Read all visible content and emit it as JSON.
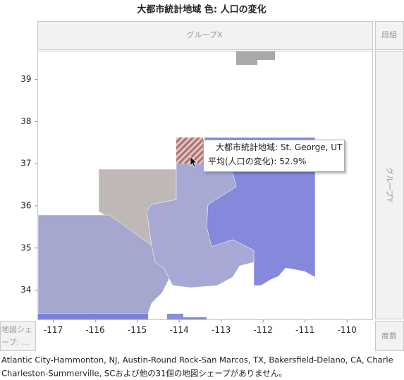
{
  "chart_data": {
    "type": "map",
    "title": "大都市統計地域 色: 人口の変化",
    "group_x_label": "グループX",
    "wrap_label": "段組",
    "group_y_label": "グループY",
    "freq_label": "度数",
    "map_shape_label": [
      "地図シェ",
      "ープ: …"
    ],
    "xlim": [
      -117.37,
      -109.39
    ],
    "xticks": [
      -117,
      -116,
      -115,
      -114,
      -113,
      -112,
      -111,
      -110
    ],
    "ylim": [
      33.3,
      39.67
    ],
    "yticks": [
      34,
      35,
      36,
      37,
      38,
      39
    ],
    "tooltip": {
      "region_label": "大都市統計地域:",
      "region": "St. George, UT",
      "measure_label": "平均(人口の変化):",
      "value": 52.9,
      "value_label": "52.9%"
    },
    "note": [
      "Atlantic City-Hammonton, NJ, Austin-Round Rock-San Marcos, TX, Bakersfield-Delano, CA, Charle",
      "Charleston-Summerville, SCおよび他の31個の地図シェープがありません。"
    ]
  }
}
